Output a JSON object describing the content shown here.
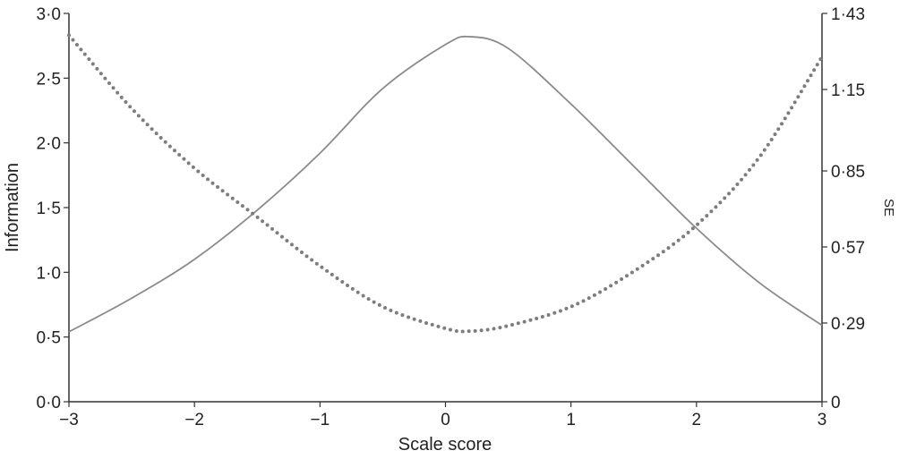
{
  "chart_data": {
    "type": "line",
    "xlabel": "Scale score",
    "ylabel": "Information",
    "y2label": "SE",
    "xlim": [
      -3,
      3
    ],
    "ylim": [
      0,
      3
    ],
    "y2lim": [
      0,
      1.43
    ],
    "x_ticks": [
      "−3",
      "−2",
      "−1",
      "0",
      "1",
      "2",
      "3"
    ],
    "y_ticks": [
      "0·0",
      "0·5",
      "1·0",
      "1·5",
      "2·0",
      "2·5",
      "3·0"
    ],
    "y2_ticks": [
      "0",
      "0·29",
      "0·57",
      "0·85",
      "1·15",
      "1·43"
    ],
    "grid": false,
    "series": [
      {
        "axis": "left",
        "style": "solid",
        "color": "#8a8a8a",
        "x": [
          -3.0,
          -2.5,
          -2.0,
          -1.5,
          -1.0,
          -0.5,
          0.0,
          0.2,
          0.5,
          1.0,
          1.5,
          2.0,
          2.5,
          3.0
        ],
        "y": [
          0.54,
          0.8,
          1.1,
          1.48,
          1.92,
          2.42,
          2.76,
          2.82,
          2.73,
          2.3,
          1.82,
          1.34,
          0.92,
          0.59
        ]
      },
      {
        "axis": "right",
        "style": "dotted",
        "color": "#7d7d7d",
        "x": [
          -3.0,
          -2.5,
          -2.0,
          -1.5,
          -1.0,
          -0.5,
          0.0,
          0.2,
          0.5,
          1.0,
          1.5,
          2.0,
          2.5,
          3.0
        ],
        "y": [
          1.35,
          1.08,
          0.86,
          0.68,
          0.5,
          0.35,
          0.27,
          0.26,
          0.28,
          0.35,
          0.48,
          0.65,
          0.9,
          1.27
        ]
      }
    ]
  }
}
